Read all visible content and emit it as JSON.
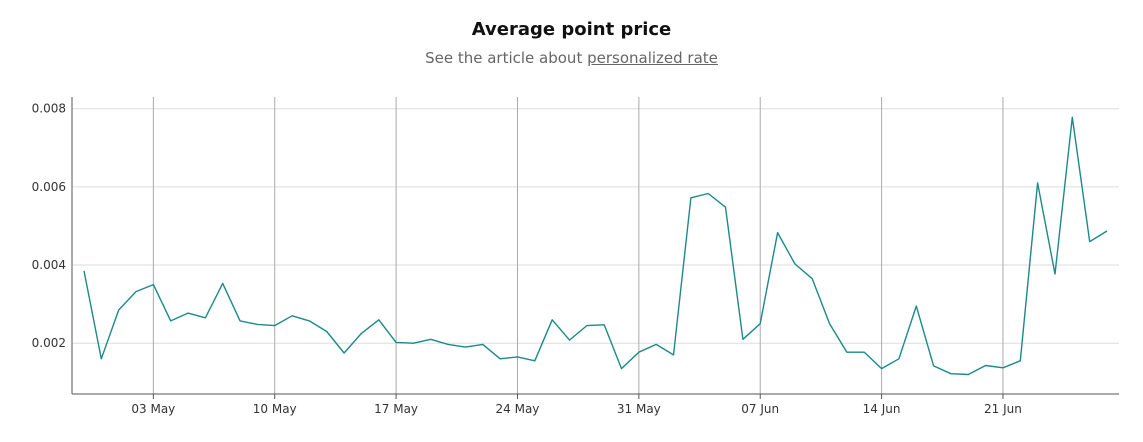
{
  "header": {
    "title": "Average point price",
    "subtitle_prefix": "See the article about ",
    "subtitle_link": "personalized rate"
  },
  "chart_data": {
    "type": "line",
    "title": "Average point price",
    "subtitle": "See the article about personalized rate",
    "xlabel": "",
    "ylabel": "",
    "x_start": "2021-04-29",
    "x_step_days": 1,
    "x_ticks": [
      "03 May",
      "10 May",
      "17 May",
      "24 May",
      "31 May",
      "07 Jun",
      "14 Jun",
      "21 Jun"
    ],
    "y_ticks": [
      "0.002",
      "0.004",
      "0.006",
      "0.008"
    ],
    "ylim": [
      0.0007,
      0.0083
    ],
    "grid": true,
    "line_color": "#1a8a8a",
    "series": [
      {
        "name": "",
        "values": [
          0.00385,
          0.0016,
          0.00285,
          0.00332,
          0.0035,
          0.00257,
          0.00277,
          0.00265,
          0.00353,
          0.00257,
          0.00248,
          0.00245,
          0.0027,
          0.00257,
          0.0023,
          0.00175,
          0.00225,
          0.0026,
          0.00202,
          0.002,
          0.0021,
          0.00197,
          0.0019,
          0.00197,
          0.0016,
          0.00165,
          0.00155,
          0.0026,
          0.00208,
          0.00245,
          0.00247,
          0.00135,
          0.00177,
          0.00197,
          0.0017,
          0.00572,
          0.00583,
          0.00548,
          0.0021,
          0.0025,
          0.00483,
          0.00403,
          0.00365,
          0.0025,
          0.00177,
          0.00177,
          0.00135,
          0.0016,
          0.00295,
          0.00142,
          0.00122,
          0.0012,
          0.00143,
          0.00137,
          0.00155,
          0.0061,
          0.00377,
          0.00778,
          0.0046,
          0.00487
        ]
      }
    ]
  }
}
